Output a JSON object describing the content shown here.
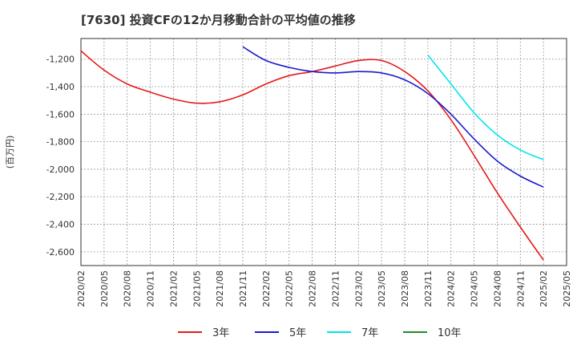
{
  "chart_data": {
    "type": "line",
    "title": "[7630]  投資CFの12か月移動合計の平均値の推移",
    "ylabel": "(百万円)",
    "xlabel": "",
    "ylim": [
      -2700,
      -1050
    ],
    "y_ticks": [
      -1200,
      -1400,
      -1600,
      -1800,
      -2000,
      -2200,
      -2400,
      -2600
    ],
    "y_tick_labels": [
      "-1,200",
      "-1,400",
      "-1,600",
      "-1,800",
      "-2,000",
      "-2,200",
      "-2,400",
      "-2,600"
    ],
    "x_ticks": [
      "2020/02",
      "2020/05",
      "2020/08",
      "2020/11",
      "2021/02",
      "2021/05",
      "2021/08",
      "2021/11",
      "2022/02",
      "2022/05",
      "2022/08",
      "2022/11",
      "2023/02",
      "2023/05",
      "2023/08",
      "2023/11",
      "2024/02",
      "2024/05",
      "2024/08",
      "2024/11",
      "2025/02",
      "2025/05"
    ],
    "grid": true,
    "legend_position": "bottom",
    "series": [
      {
        "name": "3年",
        "color": "#e41a1c",
        "x": [
          "2020/02",
          "2020/05",
          "2020/08",
          "2020/11",
          "2021/02",
          "2021/05",
          "2021/08",
          "2021/11",
          "2022/02",
          "2022/05",
          "2022/08",
          "2022/11",
          "2023/02",
          "2023/05",
          "2023/08",
          "2023/11",
          "2024/02",
          "2024/05",
          "2024/08",
          "2024/11",
          "2025/02"
        ],
        "values": [
          -1140,
          -1280,
          -1380,
          -1440,
          -1490,
          -1520,
          -1510,
          -1460,
          -1380,
          -1320,
          -1290,
          -1250,
          -1210,
          -1210,
          -1290,
          -1430,
          -1640,
          -1900,
          -2170,
          -2420,
          -2660
        ]
      },
      {
        "name": "5年",
        "color": "#1a1acc",
        "x": [
          "2021/11",
          "2022/02",
          "2022/05",
          "2022/08",
          "2022/11",
          "2023/02",
          "2023/05",
          "2023/08",
          "2023/11",
          "2024/02",
          "2024/05",
          "2024/08",
          "2024/11",
          "2025/02"
        ],
        "values": [
          -1110,
          -1210,
          -1260,
          -1290,
          -1300,
          -1290,
          -1300,
          -1350,
          -1450,
          -1600,
          -1780,
          -1940,
          -2050,
          -2130
        ]
      },
      {
        "name": "7年",
        "color": "#00e5ee",
        "x": [
          "2023/11",
          "2024/02",
          "2024/05",
          "2024/08",
          "2024/11",
          "2025/02"
        ],
        "values": [
          -1170,
          -1380,
          -1590,
          -1750,
          -1860,
          -1930
        ]
      },
      {
        "name": "10年",
        "color": "#228b22",
        "x": [],
        "values": []
      }
    ]
  }
}
